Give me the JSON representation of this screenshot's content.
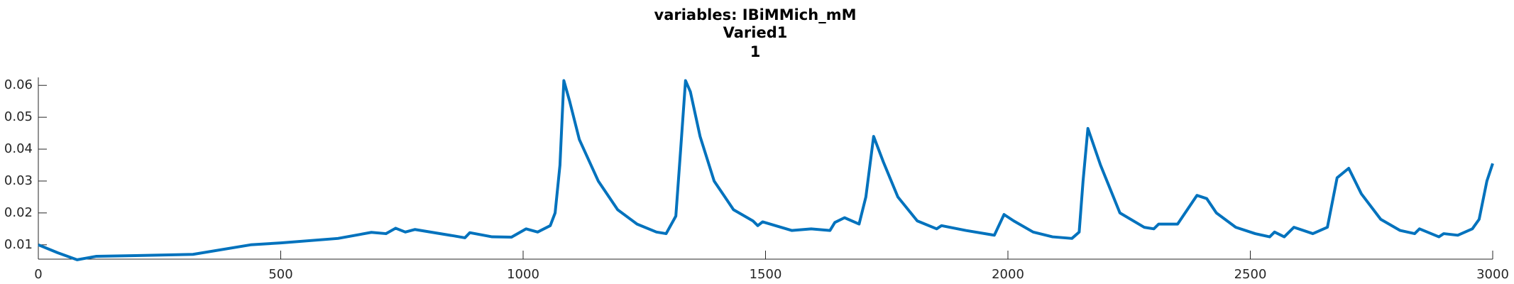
{
  "chart_data": {
    "type": "line",
    "title": "variables: IBiMMich_mM",
    "subtitle": "Varied1",
    "subtitle2": "1",
    "x": [
      0,
      40,
      80,
      120,
      200,
      319,
      438,
      500,
      618,
      687,
      717,
      737,
      757,
      777,
      857,
      880,
      890,
      936,
      976,
      1006,
      1030,
      1056,
      1066,
      1076,
      1084,
      1096,
      1116,
      1155,
      1195,
      1235,
      1275,
      1295,
      1315,
      1325,
      1335,
      1345,
      1365,
      1394,
      1434,
      1474,
      1484,
      1494,
      1554,
      1594,
      1633,
      1643,
      1663,
      1693,
      1707,
      1723,
      1743,
      1773,
      1813,
      1853,
      1863,
      1913,
      1972,
      1992,
      2012,
      2052,
      2092,
      2132,
      2147,
      2155,
      2165,
      2191,
      2231,
      2281,
      2301,
      2311,
      2350,
      2370,
      2390,
      2410,
      2430,
      2470,
      2510,
      2540,
      2550,
      2570,
      2590,
      2629,
      2659,
      2679,
      2703,
      2729,
      2769,
      2809,
      2839,
      2849,
      2889,
      2899,
      2928,
      2958,
      2972,
      2988,
      3000
    ],
    "series": [
      {
        "name": "IBiMMich_mM",
        "color": "#0072bd",
        "values": [
          0.01,
          0.0075,
          0.0053,
          0.0064,
          0.0066,
          0.007,
          0.01,
          0.0106,
          0.012,
          0.0139,
          0.0135,
          0.0152,
          0.014,
          0.0148,
          0.0128,
          0.0122,
          0.0138,
          0.0125,
          0.0124,
          0.015,
          0.014,
          0.016,
          0.02,
          0.035,
          0.0615,
          0.055,
          0.043,
          0.03,
          0.021,
          0.0165,
          0.014,
          0.0135,
          0.019,
          0.04,
          0.0615,
          0.058,
          0.044,
          0.03,
          0.021,
          0.0175,
          0.016,
          0.0172,
          0.0145,
          0.015,
          0.0145,
          0.017,
          0.0185,
          0.0165,
          0.025,
          0.044,
          0.036,
          0.025,
          0.0175,
          0.015,
          0.016,
          0.0145,
          0.013,
          0.0195,
          0.0175,
          0.014,
          0.0125,
          0.012,
          0.014,
          0.03,
          0.0465,
          0.035,
          0.02,
          0.0155,
          0.015,
          0.0165,
          0.0165,
          0.021,
          0.0255,
          0.0245,
          0.02,
          0.0155,
          0.0135,
          0.0125,
          0.014,
          0.0125,
          0.0155,
          0.0135,
          0.0155,
          0.031,
          0.034,
          0.026,
          0.018,
          0.0145,
          0.0135,
          0.015,
          0.0125,
          0.0135,
          0.013,
          0.015,
          0.018,
          0.03,
          0.0355
        ]
      }
    ],
    "xlim": [
      0,
      3000
    ],
    "xticks": [
      0,
      500,
      1000,
      1500,
      2000,
      2500,
      3000
    ],
    "ylim": [
      0.0055,
      0.0625
    ],
    "yticks": [
      0.01,
      0.02,
      0.03,
      0.04,
      0.05,
      0.06
    ]
  }
}
